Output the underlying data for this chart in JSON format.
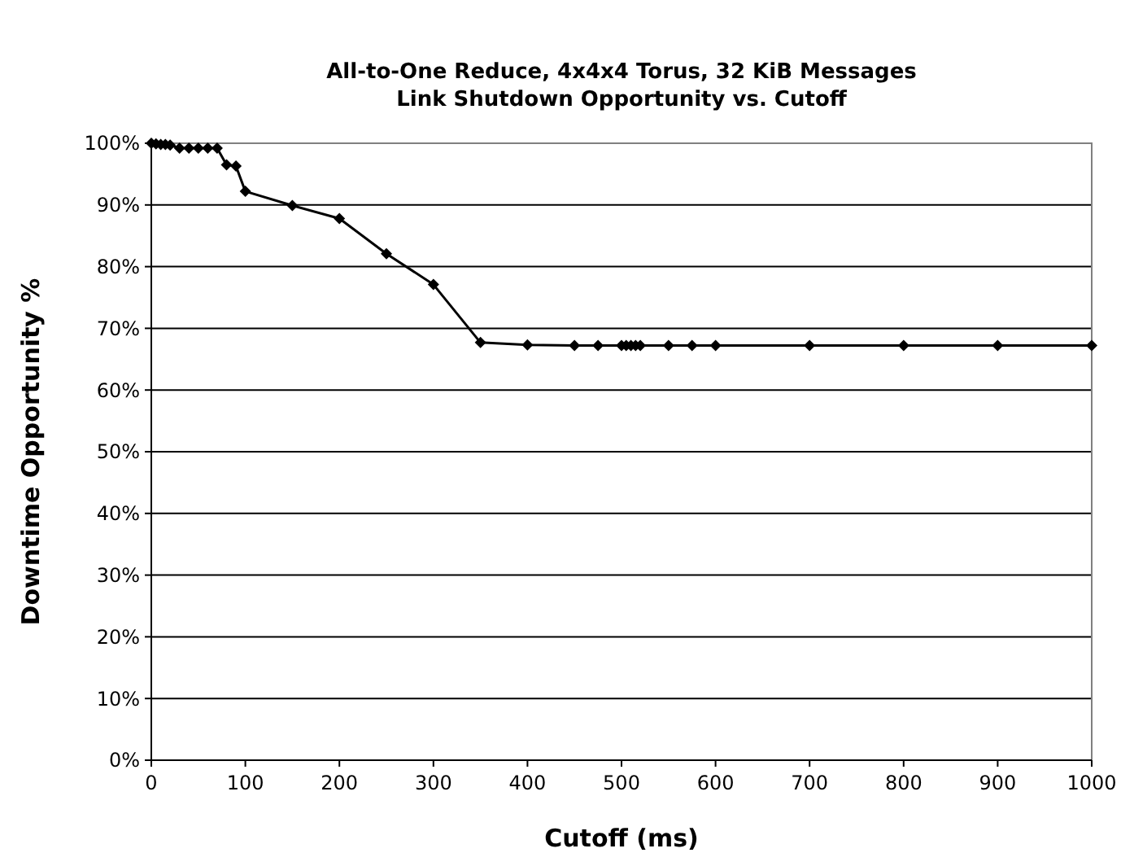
{
  "chart_data": {
    "type": "line",
    "title": "All-to-One Reduce, 4x4x4 Torus, 32 KiB Messages",
    "subtitle": "Link Shutdown Opportunity vs. Cutoff",
    "xlabel": "Cutoff (ms)",
    "ylabel": "Downtime Opportunity %",
    "x": [
      0,
      5,
      10,
      15,
      20,
      30,
      40,
      50,
      60,
      70,
      80,
      90,
      100,
      150,
      200,
      250,
      300,
      350,
      400,
      450,
      475,
      500,
      505,
      510,
      515,
      520,
      550,
      575,
      600,
      700,
      800,
      900,
      1000
    ],
    "series": [
      {
        "color": "#000000",
        "values": [
          100,
          99.9,
          99.8,
          99.8,
          99.7,
          99.2,
          99.2,
          99.2,
          99.2,
          99.2,
          96.5,
          96.3,
          92.2,
          89.9,
          87.8,
          82.1,
          77.1,
          67.7,
          67.3,
          67.2,
          67.2,
          67.2,
          67.2,
          67.2,
          67.2,
          67.2,
          67.2,
          67.2,
          67.2,
          67.2,
          67.2,
          67.2,
          67.2
        ]
      }
    ],
    "xlim": [
      0,
      1000
    ],
    "xticks": [
      0,
      100,
      200,
      300,
      400,
      500,
      600,
      700,
      800,
      900,
      1000
    ],
    "ylim": [
      0,
      100
    ],
    "yticks": [
      {
        "value": 0,
        "label": "0%"
      },
      {
        "value": 10,
        "label": "10%"
      },
      {
        "value": 20,
        "label": "20%"
      },
      {
        "value": 30,
        "label": "30%"
      },
      {
        "value": 40,
        "label": "40%"
      },
      {
        "value": 50,
        "label": "50%"
      },
      {
        "value": 60,
        "label": "60%"
      },
      {
        "value": 70,
        "label": "70%"
      },
      {
        "value": 80,
        "label": "80%"
      },
      {
        "value": 90,
        "label": "90%"
      },
      {
        "value": 100,
        "label": "100%"
      }
    ],
    "grid": "y",
    "marker": "diamond",
    "line_style": "solid"
  }
}
